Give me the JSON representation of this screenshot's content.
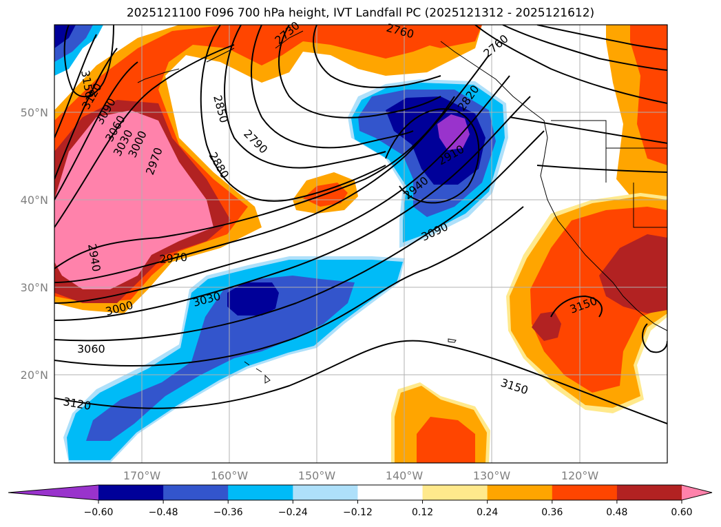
{
  "title": "2025121100 F096 700 hPa height, IVT Landfall PC (2025121312 - 2025121612)",
  "map": {
    "lon_range": [
      -180,
      -110
    ],
    "lat_range": [
      10,
      60
    ],
    "lat_labels": [
      "20°N",
      "30°N",
      "40°N",
      "50°N"
    ],
    "lon_labels": [
      "170°W",
      "160°W",
      "150°W",
      "140°W",
      "130°W",
      "120°W"
    ],
    "contour_labels": [
      "3150",
      "3120",
      "3090",
      "3060",
      "3030",
      "3000",
      "2970",
      "2760",
      "2850",
      "2790",
      "2880",
      "2820",
      "2910",
      "2940",
      "3090",
      "2970",
      "3000",
      "3030",
      "3060",
      "3120",
      "3150",
      "3150",
      "2940",
      "2730",
      "2760"
    ],
    "colors": {
      "purple": "#9933cc",
      "navy": "#000099",
      "royal": "#3355cc",
      "sky": "#00bbf7",
      "pale_blue": "#aee0fa",
      "pale_yellow": "#ffe98c",
      "orange": "#ffa500",
      "red_orange": "#ff4500",
      "brick": "#b22222",
      "pink": "#ff82ab"
    }
  },
  "colorbar": {
    "ticks": [
      "−0.60",
      "−0.48",
      "−0.36",
      "−0.24",
      "−0.12",
      "0.12",
      "0.24",
      "0.36",
      "0.48",
      "0.60"
    ],
    "colors": [
      "#9933cc",
      "#000099",
      "#3355cc",
      "#00bbf7",
      "#aee0fa",
      "#ffffff",
      "#ffe98c",
      "#ffa500",
      "#ff4500",
      "#b22222",
      "#ff82ab"
    ]
  }
}
